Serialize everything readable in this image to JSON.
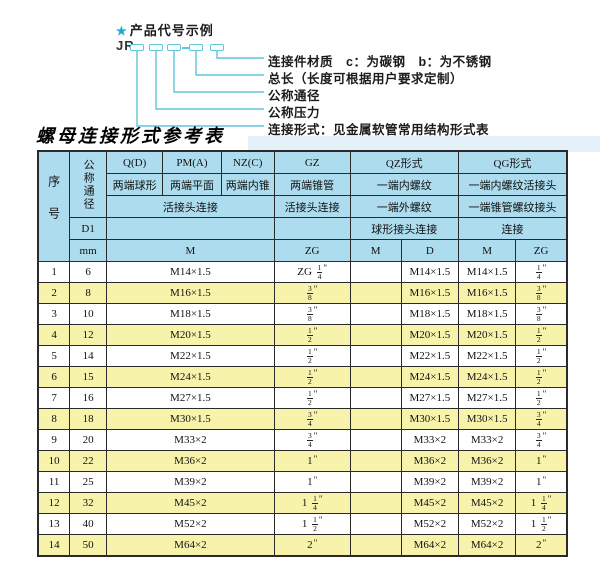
{
  "diagram": {
    "star_icon": "★",
    "heading": "产品代号示例",
    "prefix": "JR",
    "labels": [
      "连接件材质　c：为碳钢　b：为不锈钢",
      "总长（长度可根据用户要求定制）",
      "公称通径",
      "公称压力",
      "连接形式：见金属软管常用结构形式表"
    ]
  },
  "title": "螺母连接形式参考表",
  "table": {
    "header": {
      "seq": "序号",
      "dn": "公称通径",
      "d1": "D1",
      "mm": "mm",
      "q": {
        "code": "Q(D)",
        "ends": "两端球形"
      },
      "pm": {
        "code": "PM(A)",
        "ends": "两端平面"
      },
      "nz": {
        "code": "NZ(C)",
        "ends": "两端内锥"
      },
      "gz": {
        "code": "GZ",
        "ends": "两端锥管",
        "conn": "活接头连接",
        "unit": "ZG"
      },
      "union_conn": "活接头连接",
      "m_label": "M",
      "qz": {
        "title": "QZ形式",
        "row2": "一端内螺纹",
        "row3": "一端外螺纹",
        "row4": "球形接头连接",
        "col1": "M",
        "col2": "D"
      },
      "qg": {
        "title": "QG形式",
        "row2": "一端内螺纹活接头",
        "row3": "一端锥管螺纹接头",
        "row4": "连接",
        "col1": "M",
        "col2": "ZG"
      }
    },
    "rows": [
      {
        "no": "1",
        "dn": "6",
        "m": "M14×1.5",
        "gz": "ZG 1/4\"",
        "qz_m": "",
        "qz_d": "M14×1.5",
        "qg_m": "M14×1.5",
        "qg_zg": "1/4\""
      },
      {
        "no": "2",
        "dn": "8",
        "m": "M16×1.5",
        "gz": "3/8\"",
        "qz_m": "",
        "qz_d": "M16×1.5",
        "qg_m": "M16×1.5",
        "qg_zg": "3/8\""
      },
      {
        "no": "3",
        "dn": "10",
        "m": "M18×1.5",
        "gz": "3/8\"",
        "qz_m": "",
        "qz_d": "M18×1.5",
        "qg_m": "M18×1.5",
        "qg_zg": "3/8\""
      },
      {
        "no": "4",
        "dn": "12",
        "m": "M20×1.5",
        "gz": "1/2\"",
        "qz_m": "",
        "qz_d": "M20×1.5",
        "qg_m": "M20×1.5",
        "qg_zg": "1/2\""
      },
      {
        "no": "5",
        "dn": "14",
        "m": "M22×1.5",
        "gz": "1/2\"",
        "qz_m": "",
        "qz_d": "M22×1.5",
        "qg_m": "M22×1.5",
        "qg_zg": "1/2\""
      },
      {
        "no": "6",
        "dn": "15",
        "m": "M24×1.5",
        "gz": "1/2\"",
        "qz_m": "",
        "qz_d": "M24×1.5",
        "qg_m": "M24×1.5",
        "qg_zg": "1/2\""
      },
      {
        "no": "7",
        "dn": "16",
        "m": "M27×1.5",
        "gz": "1/2\"",
        "qz_m": "",
        "qz_d": "M27×1.5",
        "qg_m": "M27×1.5",
        "qg_zg": "1/2\""
      },
      {
        "no": "8",
        "dn": "18",
        "m": "M30×1.5",
        "gz": "3/4\"",
        "qz_m": "",
        "qz_d": "M30×1.5",
        "qg_m": "M30×1.5",
        "qg_zg": "3/4\""
      },
      {
        "no": "9",
        "dn": "20",
        "m": "M33×2",
        "gz": "3/4\"",
        "qz_m": "",
        "qz_d": "M33×2",
        "qg_m": "M33×2",
        "qg_zg": "3/4\""
      },
      {
        "no": "10",
        "dn": "22",
        "m": "M36×2",
        "gz": "1\"",
        "qz_m": "",
        "qz_d": "M36×2",
        "qg_m": "M36×2",
        "qg_zg": "1\""
      },
      {
        "no": "11",
        "dn": "25",
        "m": "M39×2",
        "gz": "1\"",
        "qz_m": "",
        "qz_d": "M39×2",
        "qg_m": "M39×2",
        "qg_zg": "1\""
      },
      {
        "no": "12",
        "dn": "32",
        "m": "M45×2",
        "gz": "1 1/4\"",
        "qz_m": "",
        "qz_d": "M45×2",
        "qg_m": "M45×2",
        "qg_zg": "1 1/4\""
      },
      {
        "no": "13",
        "dn": "40",
        "m": "M52×2",
        "gz": "1 1/2\"",
        "qz_m": "",
        "qz_d": "M52×2",
        "qg_m": "M52×2",
        "qg_zg": "1 1/2\""
      },
      {
        "no": "14",
        "dn": "50",
        "m": "M64×2",
        "gz": "2\"",
        "qz_m": "",
        "qz_d": "M64×2",
        "qg_m": "M64×2",
        "qg_zg": "2\""
      }
    ]
  },
  "colors": {
    "header_blue": "#addcee",
    "row_yellow": "#f7f3ab",
    "accent_cyan": "#5fc6dd",
    "star_blue": "#1ea9d5",
    "border_dark": "#2a2a2a",
    "band_blue": "#e4f1f8"
  }
}
